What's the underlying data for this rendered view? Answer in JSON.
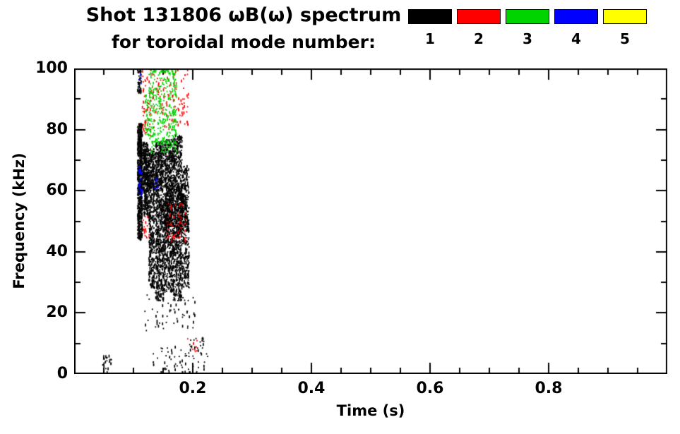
{
  "title": {
    "line1": "Shot 131806 ωB(ω) spectrum",
    "line2": "for toroidal mode number:"
  },
  "legend": {
    "entries": [
      {
        "label": "1",
        "color": "#000000"
      },
      {
        "label": "2",
        "color": "#ff0000"
      },
      {
        "label": "3",
        "color": "#00d400"
      },
      {
        "label": "4",
        "color": "#0000ff"
      },
      {
        "label": "5",
        "color": "#ffff00"
      }
    ]
  },
  "chart_data": {
    "type": "scatter",
    "title": "Shot 131806 ωB(ω) spectrum for toroidal mode number",
    "xlabel": "Time (s)",
    "ylabel": "Frequency (kHz)",
    "xlim": [
      0,
      1.0
    ],
    "ylim": [
      0,
      100
    ],
    "grid": false,
    "legend_position": "top-right",
    "xticks": {
      "major": [
        0.2,
        0.4,
        0.6,
        0.8
      ],
      "labels": [
        "0.2",
        "0.4",
        "0.6",
        "0.8"
      ],
      "minor_step": 0.05
    },
    "yticks": {
      "major": [
        0,
        20,
        40,
        60,
        80,
        100
      ],
      "labels": [
        "0",
        "20",
        "40",
        "60",
        "80",
        "100"
      ],
      "minor_step": 10
    },
    "series": [
      {
        "name": "toroidal mode n=1",
        "color": "#000000",
        "clusters": [
          {
            "t": [
              0.106,
              0.114
            ],
            "f": [
              44,
              82
            ],
            "n": 700
          },
          {
            "t": [
              0.106,
              0.112
            ],
            "f": [
              92,
              100
            ],
            "n": 45
          },
          {
            "t": [
              0.115,
              0.124
            ],
            "f": [
              52,
              76
            ],
            "n": 280
          },
          {
            "t": [
              0.125,
              0.135
            ],
            "f": [
              28,
              74
            ],
            "n": 400
          },
          {
            "t": [
              0.136,
              0.15
            ],
            "f": [
              24,
              76
            ],
            "n": 650
          },
          {
            "t": [
              0.15,
              0.166
            ],
            "f": [
              27,
              77
            ],
            "n": 750
          },
          {
            "t": [
              0.166,
              0.181
            ],
            "f": [
              24,
              78
            ],
            "n": 700
          },
          {
            "t": [
              0.181,
              0.193
            ],
            "f": [
              28,
              68
            ],
            "n": 320
          },
          {
            "t": [
              0.152,
              0.188
            ],
            "f": [
              48,
              62
            ],
            "n": 350
          },
          {
            "t": [
              0.108,
              0.148
            ],
            "f": [
              60,
              73
            ],
            "n": 260
          },
          {
            "t": [
              0.118,
              0.205
            ],
            "f": [
              14,
              26
            ],
            "n": 55
          },
          {
            "t": [
              0.132,
              0.225
            ],
            "f": [
              0,
              9
            ],
            "n": 65
          },
          {
            "t": [
              0.046,
              0.062
            ],
            "f": [
              0,
              6
            ],
            "n": 22
          },
          {
            "t": [
              0.188,
              0.218
            ],
            "f": [
              8,
              12
            ],
            "n": 16
          }
        ]
      },
      {
        "name": "toroidal mode n=2",
        "color": "#ff0000",
        "clusters": [
          {
            "t": [
              0.114,
              0.134
            ],
            "f": [
              78,
              100
            ],
            "n": 70
          },
          {
            "t": [
              0.15,
              0.192
            ],
            "f": [
              80,
              100
            ],
            "n": 85
          },
          {
            "t": [
              0.154,
              0.188
            ],
            "f": [
              43,
              56
            ],
            "n": 55
          },
          {
            "t": [
              0.115,
              0.126
            ],
            "f": [
              44,
              52
            ],
            "n": 18
          },
          {
            "t": [
              0.19,
              0.207
            ],
            "f": [
              7,
              12
            ],
            "n": 10
          },
          {
            "t": [
              0.136,
              0.15
            ],
            "f": [
              85,
              97
            ],
            "n": 22
          }
        ]
      },
      {
        "name": "toroidal mode n=3",
        "color": "#00d400",
        "clusters": [
          {
            "t": [
              0.125,
              0.172
            ],
            "f": [
              72,
              100
            ],
            "n": 330
          },
          {
            "t": [
              0.118,
              0.127
            ],
            "f": [
              78,
              92
            ],
            "n": 40
          }
        ]
      },
      {
        "name": "toroidal mode n=4",
        "color": "#0000ff",
        "clusters": [
          {
            "t": [
              0.107,
              0.114
            ],
            "f": [
              58,
              68
            ],
            "n": 30
          },
          {
            "t": [
              0.134,
              0.141
            ],
            "f": [
              60,
              64
            ],
            "n": 8
          },
          {
            "t": [
              0.108,
              0.112
            ],
            "f": [
              95,
              99
            ],
            "n": 4
          }
        ]
      },
      {
        "name": "toroidal mode n=5",
        "color": "#ffff00",
        "clusters": []
      }
    ]
  }
}
